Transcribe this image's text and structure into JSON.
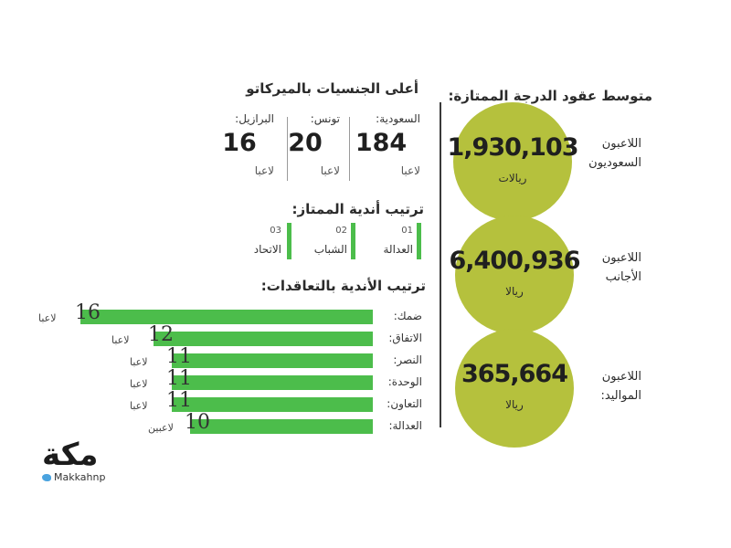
{
  "right_panel": {
    "title": "متوسط عقود الدرجة الممتازة:",
    "items": [
      {
        "label_line1": "اللاعبون",
        "label_line2": "السعوديون",
        "value": "1,930,103",
        "unit": "ريالات"
      },
      {
        "label_line1": "اللاعبون",
        "label_line2": "الأجانب",
        "value": "6,400,936",
        "unit": "ريالا"
      },
      {
        "label_line1": "اللاعبون",
        "label_line2": "المواليد:",
        "value": "365,664",
        "unit": "ريالا"
      }
    ],
    "circle_color": "#b5c13d"
  },
  "nationalities": {
    "title": "أعلى الجنسيات بالميركاتو",
    "items": [
      {
        "country": "السعودية:",
        "count": "184",
        "unit": "لاعبا"
      },
      {
        "country": "تونس:",
        "count": "20",
        "unit": "لاعبا"
      },
      {
        "country": "البرازيل:",
        "count": "16",
        "unit": "لاعبا"
      }
    ]
  },
  "club_ranking": {
    "title": "ترتيب أندية الممتاز:",
    "items": [
      {
        "rank": "01",
        "club": "العدالة"
      },
      {
        "rank": "02",
        "club": "الشباب"
      },
      {
        "rank": "03",
        "club": "الاتحاد"
      }
    ],
    "bar_color": "#4cbd4b"
  },
  "chart_data": {
    "type": "bar",
    "title": "ترتيب الأندية بالتعاقدات:",
    "categories": [
      "ضمك:",
      "الاتفاق:",
      "النصر:",
      "الوحدة:",
      "التعاون:",
      "العدالة:"
    ],
    "values": [
      16,
      12,
      11,
      11,
      11,
      10
    ],
    "value_labels": [
      "16",
      "12",
      "11",
      "11",
      "11",
      "10"
    ],
    "unit_labels": [
      "لاعبا",
      "لاعبا",
      "لاعبا",
      "لاعبا",
      "لاعبا",
      "لاعبين"
    ],
    "orientation": "horizontal-rtl",
    "bar_color": "#4cbd4b"
  },
  "logo": {
    "wordmark": "مكة",
    "handle": "Makkahnp"
  }
}
